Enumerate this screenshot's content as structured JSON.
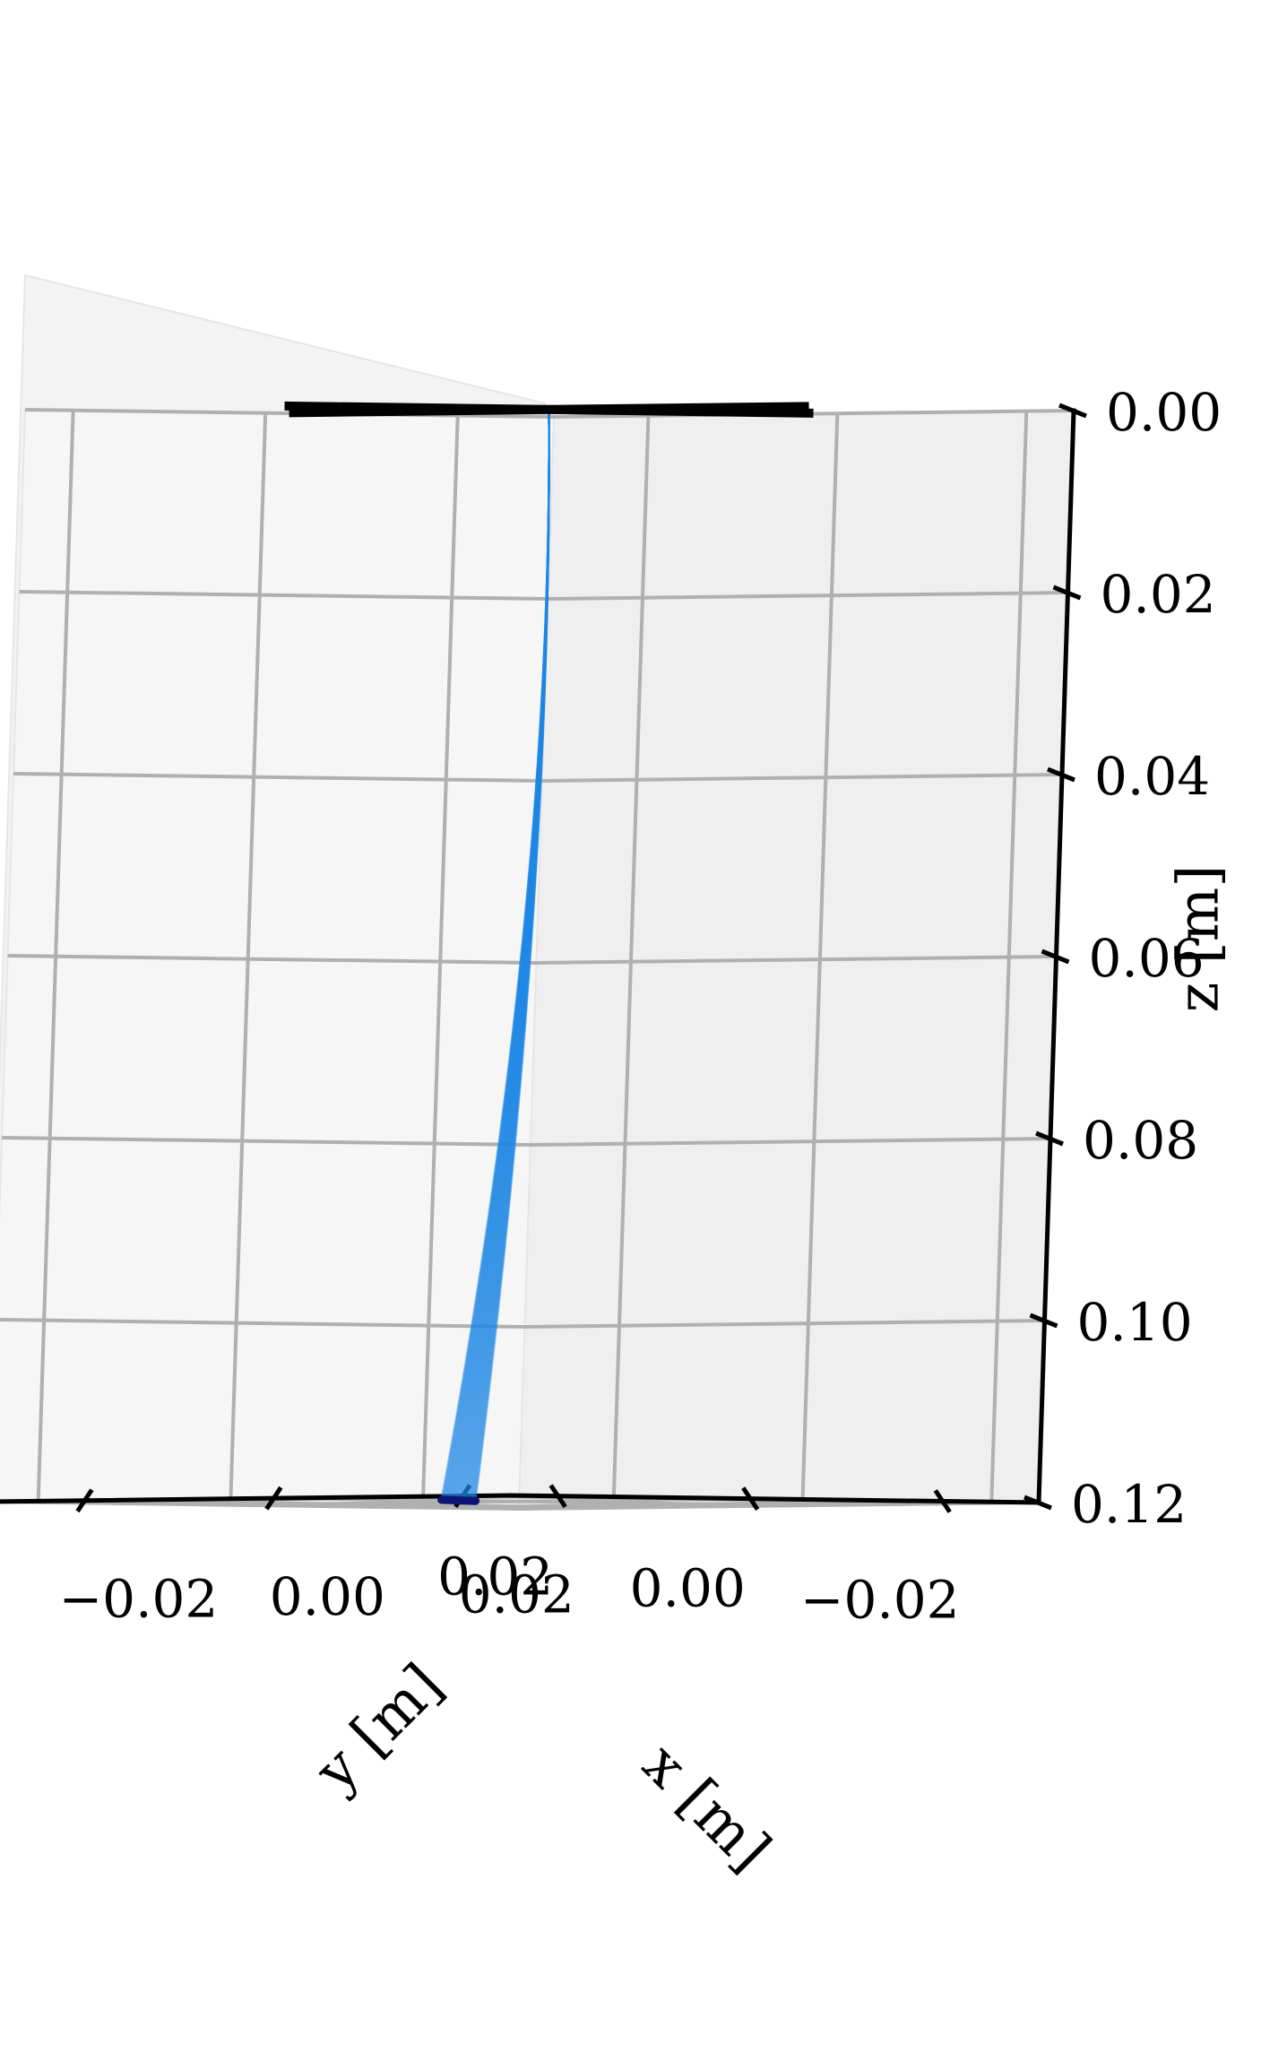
{
  "chart_data": {
    "type": "line3d",
    "title": "",
    "axes": {
      "x": {
        "label": "x [m]",
        "lim": [
          -0.03,
          0.025
        ],
        "ticks": [
          -0.02,
          0.0,
          0.02
        ],
        "tick_labels": [
          "−0.02",
          "0.00",
          "0.02"
        ]
      },
      "y": {
        "label": "y [m]",
        "lim": [
          -0.03,
          0.025
        ],
        "ticks": [
          -0.02,
          0.0,
          0.02
        ],
        "tick_labels": [
          "−0.02",
          "0.00",
          "0.02"
        ]
      },
      "z": {
        "label": "z [m]",
        "lim": [
          0.0,
          0.12
        ],
        "inverted": true,
        "ticks": [
          0.0,
          0.02,
          0.04,
          0.06,
          0.08,
          0.1,
          0.12
        ],
        "tick_labels": [
          "0.00",
          "0.02",
          "0.04",
          "0.06",
          "0.08",
          "0.10",
          "0.12"
        ]
      }
    },
    "grid": true,
    "support_cross": {
      "color": "#000000",
      "z": 0.0,
      "segments": [
        {
          "from": [
            -0.0275,
            0.0
          ],
          "to": [
            0.0275,
            0.0
          ]
        },
        {
          "from": [
            0.0,
            -0.0275
          ],
          "to": [
            0.0,
            0.0275
          ]
        }
      ]
    },
    "rod_bundle": {
      "color": "#1e88e5",
      "base": [
        0.0,
        0.0,
        0.0
      ],
      "tip_path": [
        [
          0.004,
          0.0,
          0.12
        ],
        [
          0.0105,
          0.003,
          0.12
        ]
      ],
      "count": 40
    },
    "tip_trace": {
      "color": "#0d1473",
      "points": [
        [
          0.004,
          0.0,
          0.12
        ],
        [
          0.0105,
          0.003,
          0.12
        ]
      ]
    }
  }
}
